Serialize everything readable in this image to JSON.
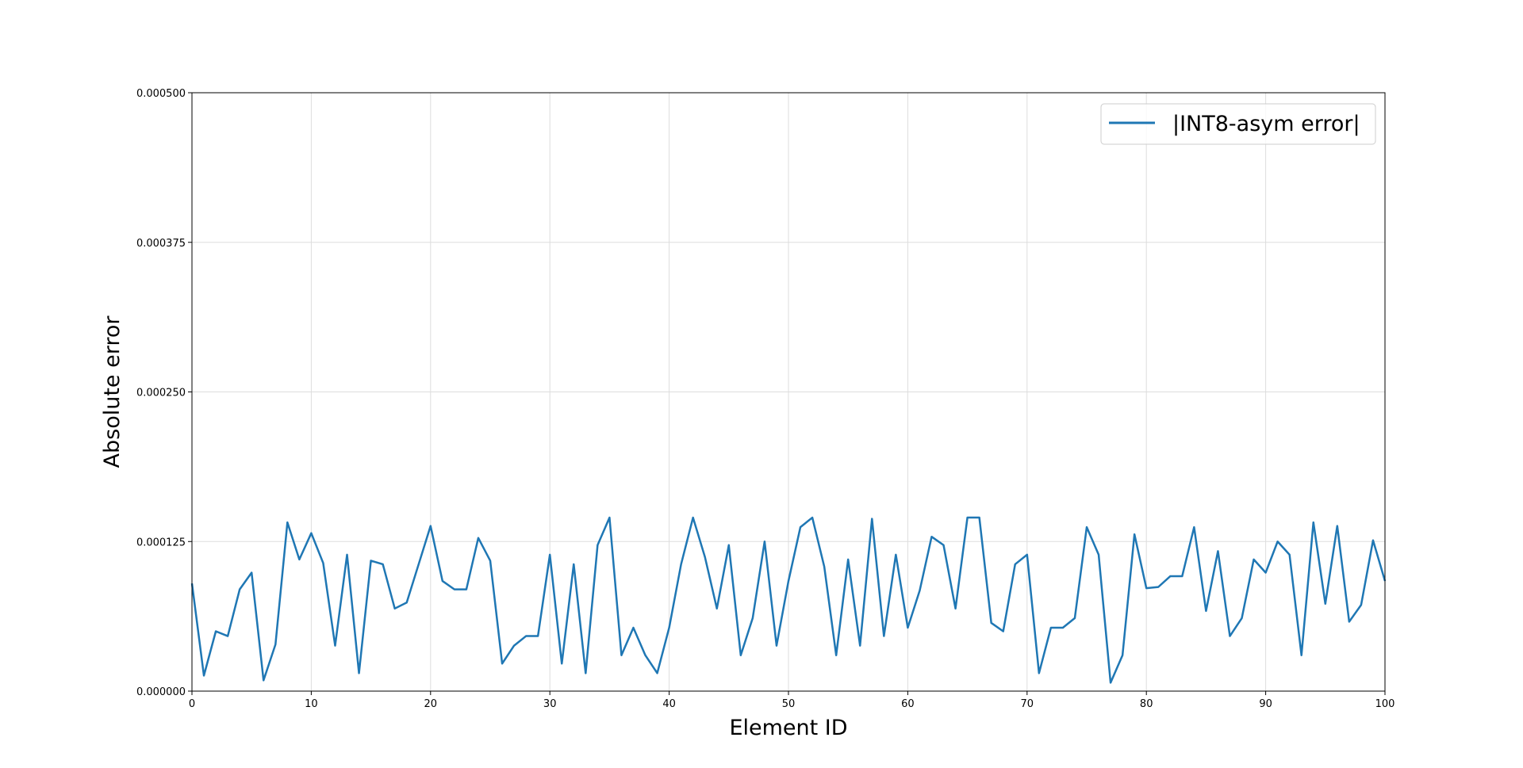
{
  "chart_data": {
    "type": "line",
    "title": "",
    "xlabel": "Element ID",
    "ylabel": "Absolute error",
    "xlim": [
      0,
      100
    ],
    "ylim": [
      0,
      0.0005
    ],
    "xticks": [
      0,
      10,
      20,
      30,
      40,
      50,
      60,
      70,
      80,
      90,
      100
    ],
    "xtick_labels": [
      "0",
      "10",
      "20",
      "30",
      "40",
      "50",
      "60",
      "70",
      "80",
      "90",
      "100"
    ],
    "yticks": [
      0,
      0.000125,
      0.00025,
      0.000375,
      0.0005
    ],
    "ytick_labels": [
      "0.000000",
      "0.000125",
      "0.000250",
      "0.000375",
      "0.000500"
    ],
    "grid": true,
    "legend_position": "top-right",
    "line_color": "#1f77b4",
    "series": [
      {
        "name": "|INT8-asym error|",
        "x": [
          0,
          1,
          2,
          3,
          4,
          5,
          6,
          7,
          8,
          9,
          10,
          11,
          12,
          13,
          14,
          15,
          16,
          17,
          18,
          19,
          20,
          21,
          22,
          23,
          24,
          25,
          26,
          27,
          28,
          29,
          30,
          31,
          32,
          33,
          34,
          35,
          36,
          37,
          38,
          39,
          40,
          41,
          42,
          43,
          44,
          45,
          46,
          47,
          48,
          49,
          50,
          51,
          52,
          53,
          54,
          55,
          56,
          57,
          58,
          59,
          60,
          61,
          62,
          63,
          64,
          65,
          66,
          67,
          68,
          69,
          70,
          71,
          72,
          73,
          74,
          75,
          76,
          77,
          78,
          79,
          80,
          81,
          82,
          83,
          84,
          85,
          86,
          87,
          88,
          89,
          90,
          91,
          92,
          93,
          94,
          95,
          96,
          97,
          98,
          99,
          100
        ],
        "values": [
          9e-05,
          1.3e-05,
          5e-05,
          4.6e-05,
          8.5e-05,
          9.9e-05,
          9e-06,
          3.9e-05,
          0.000141,
          0.00011,
          0.000132,
          0.000107,
          3.8e-05,
          0.000114,
          1.5e-05,
          0.000109,
          0.000106,
          6.9e-05,
          7.4e-05,
          0.000106,
          0.000138,
          9.2e-05,
          8.5e-05,
          8.5e-05,
          0.000128,
          0.000109,
          2.3e-05,
          3.8e-05,
          4.6e-05,
          4.6e-05,
          0.000114,
          2.3e-05,
          0.000106,
          1.5e-05,
          0.000122,
          0.000145,
          3e-05,
          5.3e-05,
          3e-05,
          1.5e-05,
          5.3e-05,
          0.000106,
          0.000145,
          0.000112,
          6.9e-05,
          0.000122,
          3e-05,
          6.1e-05,
          0.000125,
          3.8e-05,
          9.2e-05,
          0.000137,
          0.000145,
          0.000104,
          3e-05,
          0.00011,
          3.8e-05,
          0.000144,
          4.6e-05,
          0.000114,
          5.3e-05,
          8.4e-05,
          0.000129,
          0.000122,
          6.9e-05,
          0.000145,
          0.000145,
          5.7e-05,
          5e-05,
          0.000106,
          0.000114,
          1.5e-05,
          5.3e-05,
          5.3e-05,
          6.1e-05,
          0.000137,
          0.000114,
          7e-06,
          3e-05,
          0.000131,
          8.6e-05,
          8.7e-05,
          9.6e-05,
          9.6e-05,
          0.000137,
          6.7e-05,
          0.000117,
          4.6e-05,
          6.1e-05,
          0.00011,
          9.9e-05,
          0.000125,
          0.000114,
          3e-05,
          0.000141,
          7.3e-05,
          0.000138,
          5.8e-05,
          7.2e-05,
          0.000126,
          9.2e-05
        ]
      }
    ]
  }
}
